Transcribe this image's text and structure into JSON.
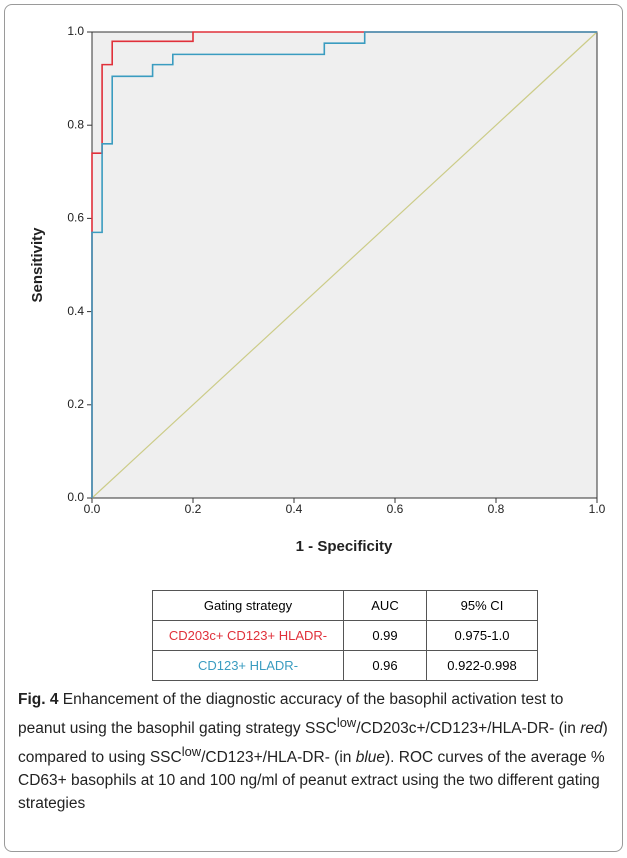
{
  "chart_data": {
    "type": "line",
    "xlabel": "1 - Specificity",
    "ylabel": "Sensitivity",
    "xlim": [
      0,
      1
    ],
    "ylim": [
      0,
      1
    ],
    "xticks": [
      {
        "value": 0,
        "label": "0.0"
      },
      0.2,
      0.4,
      0.6,
      0.8,
      {
        "value": 1,
        "label": "1.0"
      }
    ],
    "yticks": [
      {
        "value": 0,
        "label": "0.0"
      },
      0.2,
      0.4,
      0.6,
      0.8,
      {
        "value": 1,
        "label": "1.0"
      }
    ],
    "diagonal_color": "#cccc88",
    "series": [
      {
        "color": "#e0303a",
        "x": [
          0,
          0,
          0.02,
          0.02,
          0.04,
          0.04,
          0.2,
          0.2,
          1
        ],
        "values": [
          0,
          0.74,
          0.74,
          0.93,
          0.93,
          0.98,
          0.98,
          1,
          1
        ]
      },
      {
        "color": "#3a9cc0",
        "x": [
          0,
          0,
          0.02,
          0.02,
          0.04,
          0.04,
          0.12,
          0.12,
          0.16,
          0.16,
          0.46,
          0.46,
          0.54,
          0.54,
          1
        ],
        "values": [
          0,
          0.57,
          0.57,
          0.76,
          0.76,
          0.905,
          0.905,
          0.93,
          0.93,
          0.952,
          0.952,
          0.976,
          0.976,
          1,
          1
        ]
      }
    ]
  },
  "table": {
    "header": [
      "Gating strategy",
      "AUC",
      "95% CI"
    ],
    "rows": [
      [
        "CD203c+ CD123+ HLADR-",
        "0.99",
        "0.975-1.0"
      ],
      [
        "CD123+ HLADR-",
        "0.96",
        "0.922-0.998"
      ]
    ]
  },
  "caption": {
    "label": "Fig. 4",
    "parts": [
      " Enhancement of the diagnostic accuracy of the basophil activation test to peanut using the basophil gating strategy SSC",
      "low",
      "/CD203c+/CD123+/HLA-DR- (in ",
      "red",
      ") compared to using SSC",
      "low",
      "/CD123+/HLA-DR- (in ",
      "blue",
      "). ROC curves of the average % CD63+ basophils at 10 and 100 ng/ml of peanut extract using the two different gating strategies"
    ]
  }
}
